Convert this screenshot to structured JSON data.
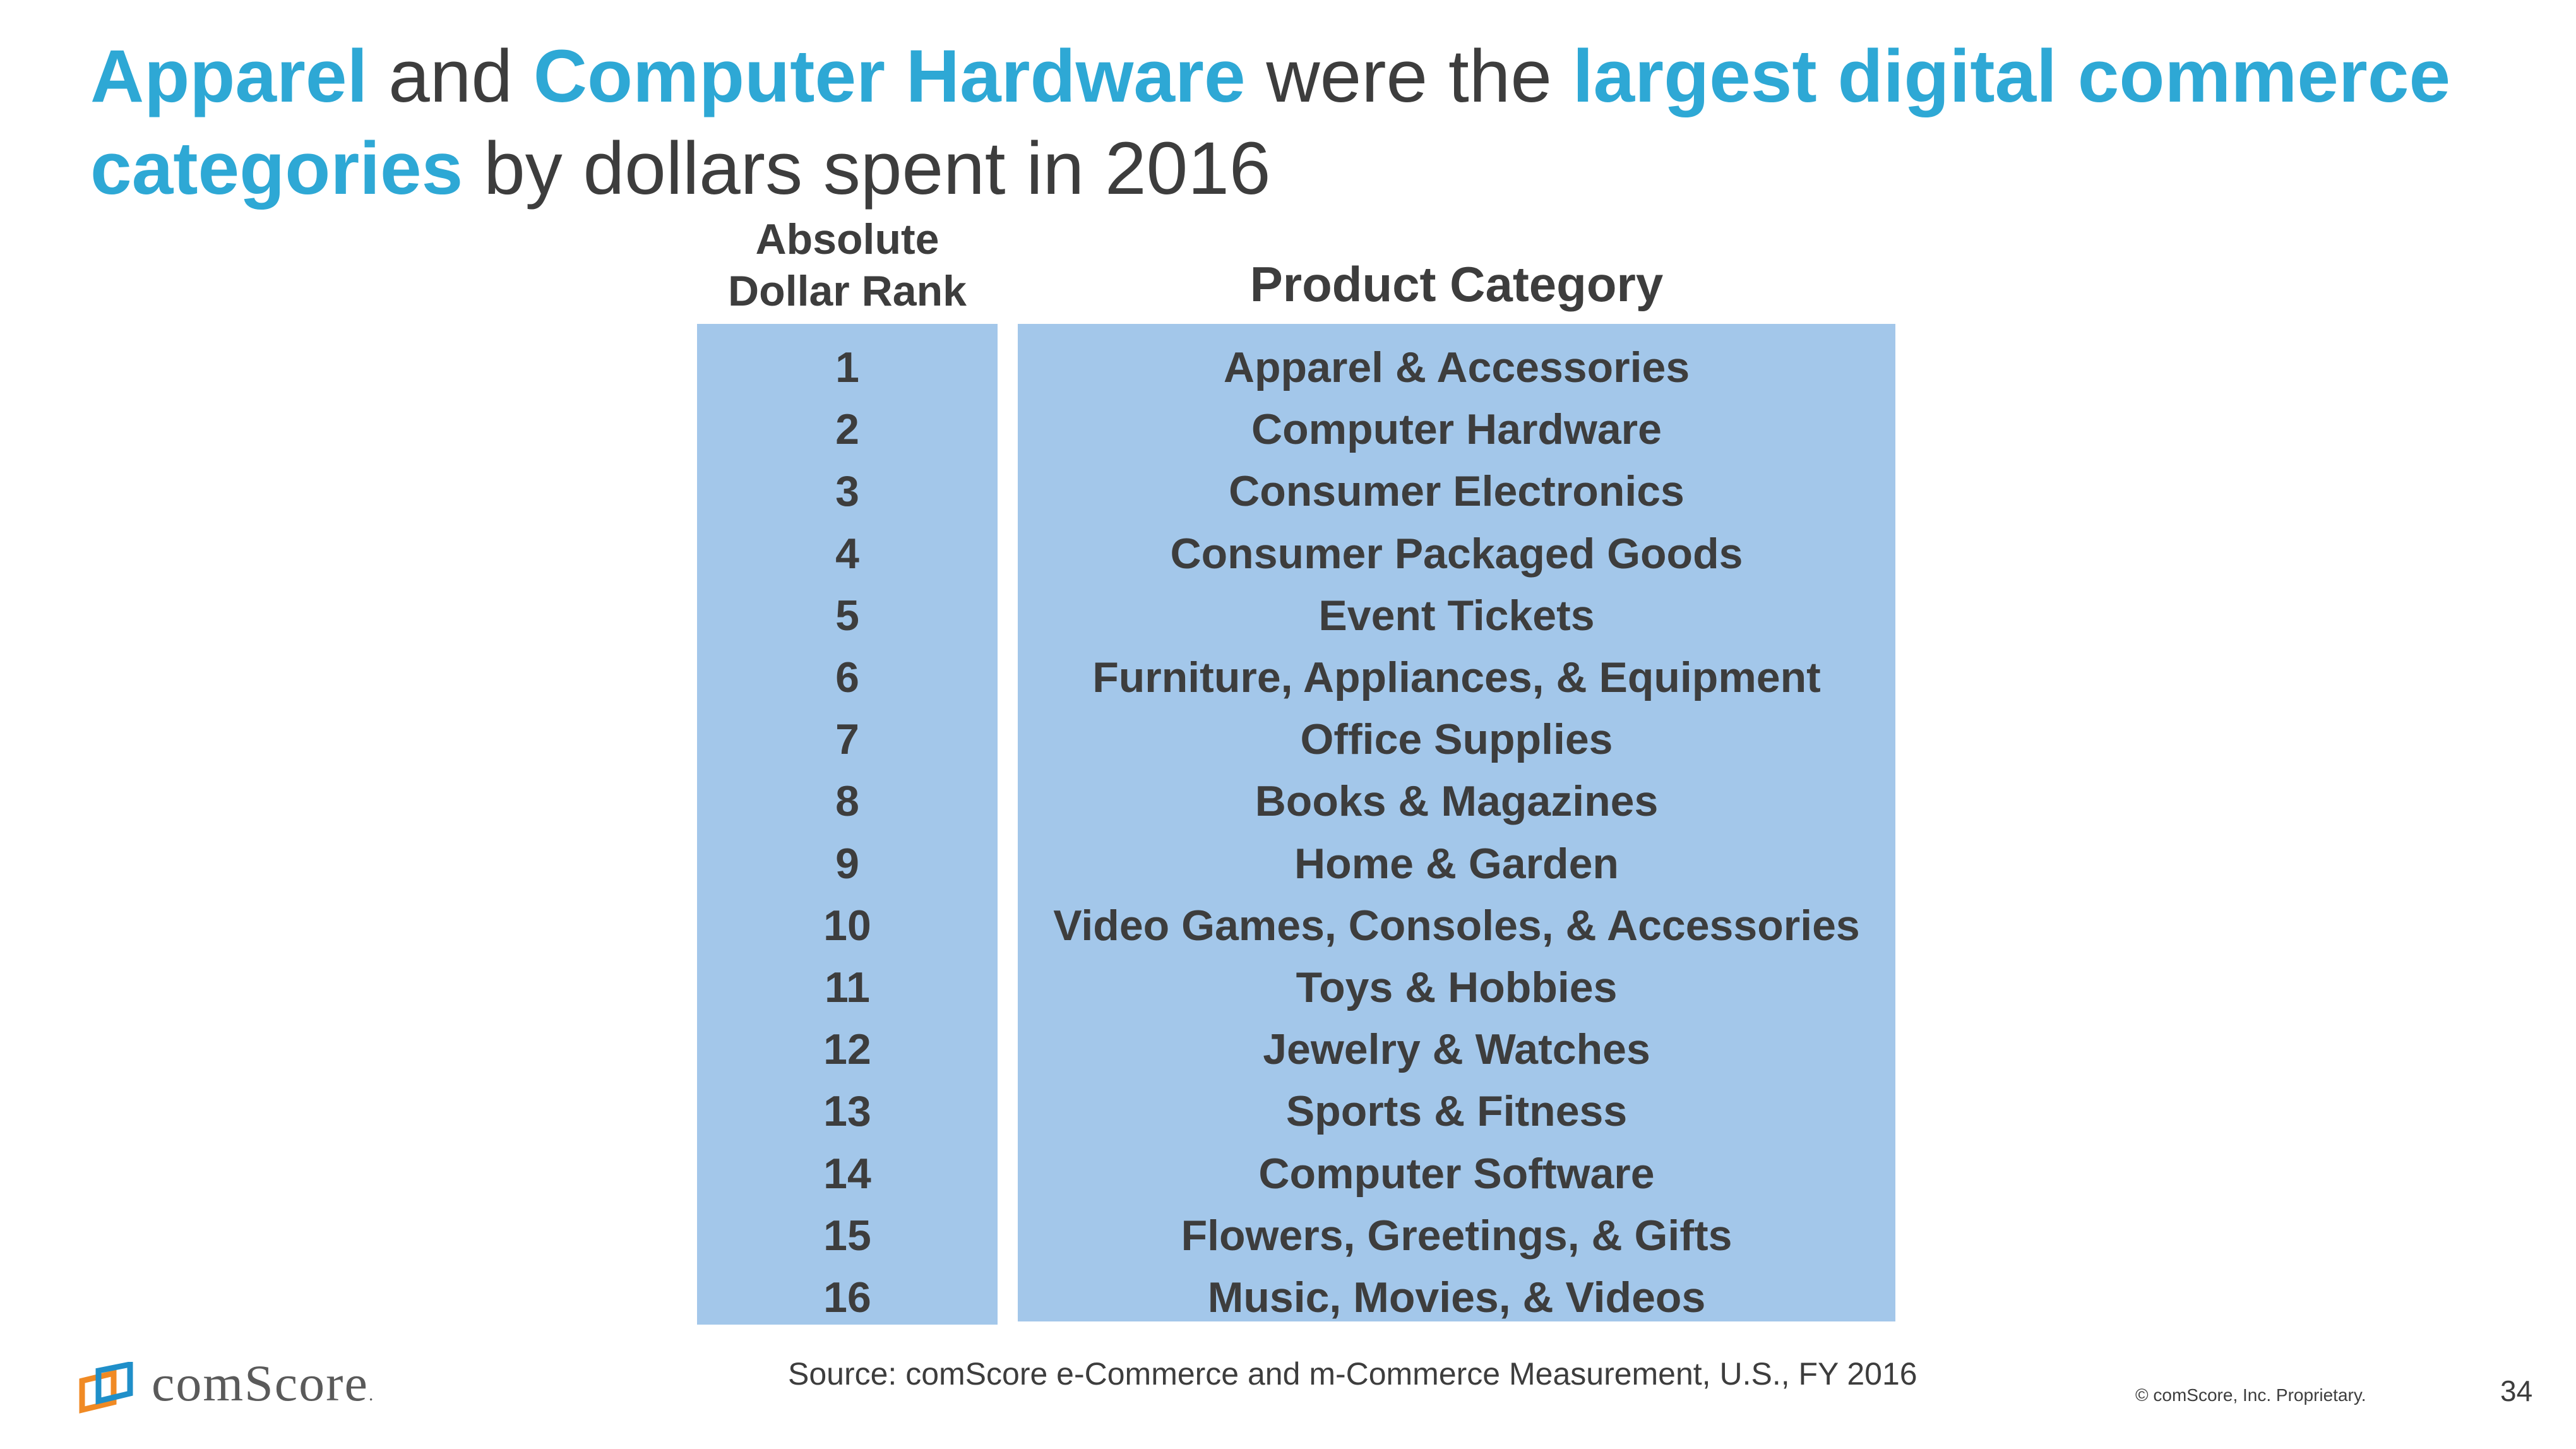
{
  "title": {
    "p1": "Apparel",
    "p2": " and ",
    "p3": "Computer Hardware",
    "p4": " were the ",
    "p5": "largest digital commerce categories",
    "p6": " by dollars spent in 2016"
  },
  "table": {
    "rank_header_line1": "Absolute",
    "rank_header_line2": "Dollar Rank",
    "category_header": "Product Category",
    "rows": [
      {
        "rank": "1",
        "category": "Apparel & Accessories"
      },
      {
        "rank": "2",
        "category": "Computer Hardware"
      },
      {
        "rank": "3",
        "category": "Consumer Electronics"
      },
      {
        "rank": "4",
        "category": "Consumer Packaged Goods"
      },
      {
        "rank": "5",
        "category": "Event Tickets"
      },
      {
        "rank": "6",
        "category": "Furniture, Appliances, & Equipment"
      },
      {
        "rank": "7",
        "category": "Office Supplies"
      },
      {
        "rank": "8",
        "category": "Books & Magazines"
      },
      {
        "rank": "9",
        "category": "Home & Garden"
      },
      {
        "rank": "10",
        "category": "Video Games, Consoles, & Accessories"
      },
      {
        "rank": "11",
        "category": "Toys & Hobbies"
      },
      {
        "rank": "12",
        "category": "Jewelry & Watches"
      },
      {
        "rank": "13",
        "category": "Sports & Fitness"
      },
      {
        "rank": "14",
        "category": "Computer Software"
      },
      {
        "rank": "15",
        "category": "Flowers, Greetings, & Gifts"
      },
      {
        "rank": "16",
        "category": "Music, Movies, & Videos"
      }
    ]
  },
  "footer": {
    "source": "Source: comScore e-Commerce and m-Commerce Measurement, U.S., FY 2016",
    "copyright": "© comScore, Inc. Proprietary.",
    "page_number": "34",
    "logo_text": "comScore",
    "logo_mark": "."
  },
  "colors": {
    "accent": "#2ea8d5",
    "text": "#3d3d3d",
    "table_fill": "#a3c7ea",
    "logo_blue": "#1f8fc9",
    "logo_orange": "#f08a24"
  }
}
